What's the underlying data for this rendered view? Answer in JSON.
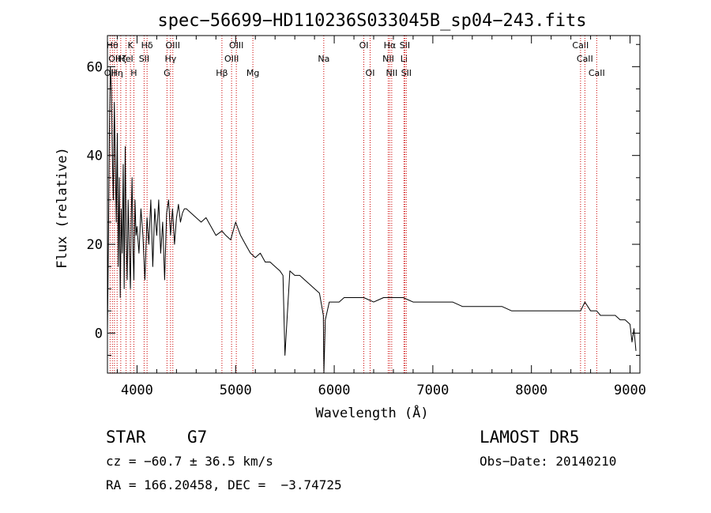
{
  "chart_data": {
    "type": "line",
    "title": "spec−56699−HD110236S033045B_sp04−243.fits",
    "xlabel": "Wavelength (Å)",
    "ylabel": "Flux (relative)",
    "xlim": [
      3700,
      9100
    ],
    "ylim": [
      -9,
      67
    ],
    "xticks": [
      "4000",
      "5000",
      "6000",
      "7000",
      "8000",
      "9000"
    ],
    "yticks": [
      "0",
      "20",
      "40",
      "60"
    ],
    "grid": false,
    "line_color": "#000000",
    "marker_color": "#cc0000",
    "series": [
      {
        "x": [
          3700,
          3710,
          3720,
          3730,
          3740,
          3750,
          3760,
          3770,
          3780,
          3790,
          3800,
          3810,
          3820,
          3830,
          3840,
          3850,
          3860,
          3870,
          3880,
          3890,
          3900,
          3910,
          3920,
          3933,
          3940,
          3950,
          3960,
          3968,
          3980,
          3990,
          4000,
          4020,
          4040,
          4060,
          4080,
          4101,
          4120,
          4140,
          4160,
          4180,
          4200,
          4220,
          4240,
          4260,
          4280,
          4300,
          4320,
          4340,
          4360,
          4380,
          4400,
          4420,
          4440,
          4460,
          4480,
          4500,
          4550,
          4600,
          4650,
          4700,
          4750,
          4800,
          4861,
          4900,
          4950,
          5000,
          5050,
          5100,
          5150,
          5200,
          5250,
          5300,
          5350,
          5400,
          5450,
          5480,
          5500,
          5550,
          5600,
          5650,
          5700,
          5750,
          5800,
          5850,
          5890,
          5895,
          5910,
          5950,
          6000,
          6050,
          6100,
          6200,
          6300,
          6400,
          6500,
          6563,
          6600,
          6700,
          6800,
          6900,
          7000,
          7100,
          7200,
          7300,
          7400,
          7500,
          7600,
          7700,
          7800,
          7900,
          8000,
          8100,
          8200,
          8300,
          8400,
          8498,
          8542,
          8600,
          8662,
          8700,
          8750,
          8800,
          8850,
          8900,
          8950,
          9000,
          9020,
          9040,
          9060
        ],
        "y": [
          0,
          20,
          45,
          60,
          55,
          40,
          30,
          52,
          38,
          25,
          45,
          15,
          35,
          8,
          28,
          18,
          38,
          10,
          42,
          22,
          12,
          30,
          20,
          10,
          25,
          35,
          18,
          12,
          30,
          22,
          24,
          18,
          28,
          22,
          12,
          26,
          20,
          30,
          15,
          28,
          22,
          30,
          18,
          25,
          12,
          27,
          30,
          22,
          28,
          20,
          26,
          29,
          25,
          27,
          28,
          28,
          27,
          26,
          25,
          26,
          24,
          22,
          23,
          22,
          21,
          25,
          22,
          20,
          18,
          17,
          18,
          16,
          16,
          15,
          14,
          13,
          -5,
          14,
          13,
          13,
          12,
          11,
          10,
          9,
          4,
          -9,
          3,
          7,
          7,
          7,
          8,
          8,
          8,
          7,
          8,
          8,
          8,
          8,
          7,
          7,
          7,
          7,
          7,
          6,
          6,
          6,
          6,
          6,
          5,
          5,
          5,
          5,
          5,
          5,
          5,
          5,
          7,
          5,
          5,
          4,
          4,
          4,
          4,
          3,
          3,
          2,
          -2,
          1,
          -4
        ]
      }
    ],
    "lines": [
      {
        "x": 3727,
        "label": "OII",
        "row": 3
      },
      {
        "x": 3750,
        "label": "Hθ",
        "row": 1
      },
      {
        "x": 3771,
        "label": "OII",
        "row": 2
      },
      {
        "x": 3798,
        "label": "Hη",
        "row": 3
      },
      {
        "x": 3835,
        "label": "Hζ",
        "row": 2
      },
      {
        "x": 3889,
        "label": "HeI",
        "row": 2
      },
      {
        "x": 3933,
        "label": "K",
        "row": 1
      },
      {
        "x": 3968,
        "label": "H",
        "row": 3
      },
      {
        "x": 4072,
        "label": "SII",
        "row": 2
      },
      {
        "x": 4102,
        "label": "Hδ",
        "row": 1
      },
      {
        "x": 4304,
        "label": "G",
        "row": 3
      },
      {
        "x": 4340,
        "label": "Hγ",
        "row": 2
      },
      {
        "x": 4363,
        "label": "OIII",
        "row": 1
      },
      {
        "x": 4861,
        "label": "Hβ",
        "row": 3
      },
      {
        "x": 4959,
        "label": "OIII",
        "row": 2
      },
      {
        "x": 5007,
        "label": "OIII",
        "row": 1
      },
      {
        "x": 5175,
        "label": "Mg",
        "row": 3
      },
      {
        "x": 5894,
        "label": "Na",
        "row": 2
      },
      {
        "x": 6300,
        "label": "OI",
        "row": 1
      },
      {
        "x": 6364,
        "label": "OI",
        "row": 3
      },
      {
        "x": 6548,
        "label": "NII",
        "row": 2
      },
      {
        "x": 6563,
        "label": "Hα",
        "row": 1
      },
      {
        "x": 6583,
        "label": "NII",
        "row": 3
      },
      {
        "x": 6707,
        "label": "Li",
        "row": 2
      },
      {
        "x": 6716,
        "label": "SII",
        "row": 1
      },
      {
        "x": 6731,
        "label": "SII",
        "row": 3
      },
      {
        "x": 8498,
        "label": "CaII",
        "row": 1
      },
      {
        "x": 8542,
        "label": "CaII",
        "row": 2
      },
      {
        "x": 8662,
        "label": "CaII",
        "row": 3
      }
    ]
  },
  "info": {
    "class_label": "STAR",
    "subclass_label": "G7",
    "survey": "LAMOST DR5",
    "cz": "cz = −60.7 ± 36.5 km/s",
    "obs_date": "Obs−Date: 20140210",
    "coords": "RA = 166.20458, DEC =  −3.74725"
  }
}
